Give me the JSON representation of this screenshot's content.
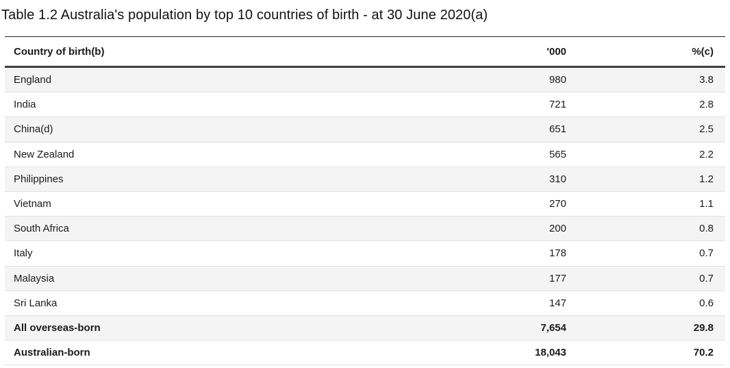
{
  "title": "Table 1.2 Australia's population by top 10 countries of birth - at 30 June 2020(a)",
  "table": {
    "headers": {
      "country": "Country of birth(b)",
      "thousands": "'000",
      "percent": "%(c)"
    },
    "rows": [
      {
        "country": "England",
        "thousands": "980",
        "percent": "3.8"
      },
      {
        "country": "India",
        "thousands": "721",
        "percent": "2.8"
      },
      {
        "country": "China(d)",
        "thousands": "651",
        "percent": "2.5"
      },
      {
        "country": "New Zealand",
        "thousands": "565",
        "percent": "2.2"
      },
      {
        "country": "Philippines",
        "thousands": "310",
        "percent": "1.2"
      },
      {
        "country": "Vietnam",
        "thousands": "270",
        "percent": "1.1"
      },
      {
        "country": "South Africa",
        "thousands": "200",
        "percent": "0.8"
      },
      {
        "country": "Italy",
        "thousands": "178",
        "percent": "0.7"
      },
      {
        "country": "Malaysia",
        "thousands": "177",
        "percent": "0.7"
      },
      {
        "country": "Sri Lanka",
        "thousands": "147",
        "percent": "0.6"
      }
    ],
    "total_rows": [
      {
        "country": "All overseas-born",
        "thousands": "7,654",
        "percent": "29.8"
      },
      {
        "country": "Australian-born",
        "thousands": "18,043",
        "percent": "70.2"
      }
    ]
  },
  "colors": {
    "background": "#ffffff",
    "stripe": "#f4f4f4",
    "row_border": "#e2e2e2",
    "header_top_rule": "#1f1f1f",
    "header_bottom_rule": "#3f3f3f",
    "text": "#1a1a1a"
  }
}
